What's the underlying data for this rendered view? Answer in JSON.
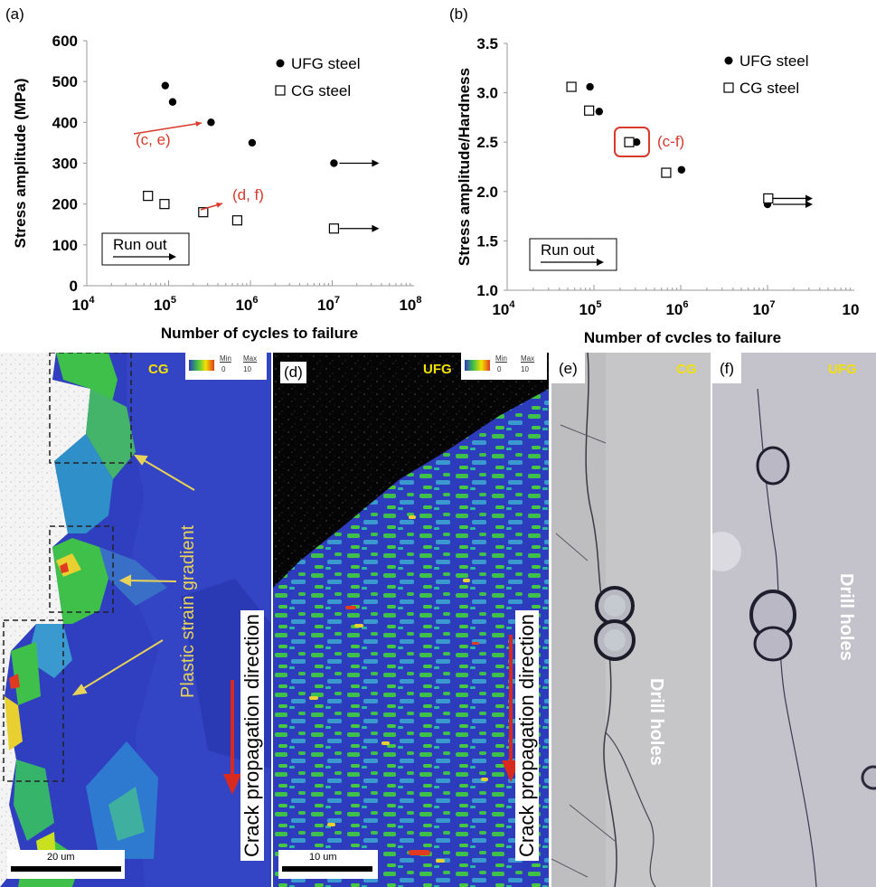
{
  "panels": {
    "a": "(a)",
    "b": "(b)",
    "c": "",
    "d": "(d)",
    "e": "(e)",
    "f": "(f)"
  },
  "chart_data": [
    {
      "type": "scatter",
      "xlabel": "Number of cycles to failure",
      "ylabel": "Stress amplitude (MPa)",
      "xscale": "log",
      "xlim": [
        10000,
        100000000
      ],
      "ylim": [
        0,
        600
      ],
      "xticks": [
        "10^4",
        "10^5",
        "10^6",
        "10^7",
        "10^8"
      ],
      "yticks": [
        "0",
        "100",
        "200",
        "300",
        "400",
        "500",
        "600"
      ],
      "legend": [
        "UFG steel",
        "CG steel"
      ],
      "legend_position": "top-right",
      "series": [
        {
          "name": "UFG steel",
          "marker": "filled-circle",
          "points": [
            [
              91000,
              490
            ],
            [
              112000,
              450
            ],
            [
              330000,
              400
            ],
            [
              1050000,
              350
            ],
            [
              10500000,
              300
            ]
          ]
        },
        {
          "name": "CG steel",
          "marker": "open-square",
          "points": [
            [
              56000,
              220
            ],
            [
              89000,
              200
            ],
            [
              265000,
              180
            ],
            [
              690000,
              160
            ],
            [
              10500000,
              140
            ]
          ]
        }
      ],
      "runouts": [
        [
          10500000,
          300
        ],
        [
          10500000,
          140
        ]
      ],
      "runout_label": "Run out",
      "annotations": [
        {
          "text": "(c, e)",
          "color": "#d93a2b",
          "points_to": [
            330000,
            400
          ]
        },
        {
          "text": "(d, f)",
          "color": "#d93a2b",
          "points_to": [
            265000,
            180
          ]
        }
      ]
    },
    {
      "type": "scatter",
      "xlabel": "Number of cvcles to failure",
      "ylabel": "Stress amplitude/Hardness",
      "xscale": "log",
      "xlim": [
        10000,
        100000000
      ],
      "ylim": [
        1.0,
        3.5
      ],
      "xticks": [
        "10^4",
        "10^5",
        "10^6",
        "10^7",
        "10"
      ],
      "yticks": [
        "1.0",
        "1.5",
        "2.0",
        "2.5",
        "3.0",
        "3.5"
      ],
      "legend": [
        "UFG steel",
        "CG steel"
      ],
      "legend_position": "top-right",
      "series": [
        {
          "name": "UFG steel",
          "marker": "filled-circle",
          "points": [
            [
              90000,
              3.06
            ],
            [
              115000,
              2.81
            ],
            [
              310000,
              2.5
            ],
            [
              1020000,
              2.22
            ],
            [
              10000000,
              1.87
            ]
          ]
        },
        {
          "name": "CG steel",
          "marker": "open-square",
          "points": [
            [
              55000,
              3.06
            ],
            [
              88000,
              2.82
            ],
            [
              255000,
              2.5
            ],
            [
              680000,
              2.19
            ],
            [
              10200000,
              1.93
            ]
          ]
        }
      ],
      "runouts": [
        [
          10000000,
          1.93
        ],
        [
          10000000,
          1.87
        ]
      ],
      "runout_label": "Run out",
      "annotations": [
        {
          "text": "(c-f)",
          "color": "#d93a2b",
          "points_to": [
            280000,
            2.5
          ],
          "boxed": true
        }
      ]
    }
  ],
  "image_c": {
    "tag": "CG",
    "scale_min_label": "Min",
    "scale_min_value": "0",
    "scale_max_label": "Max",
    "scale_max_value": "10",
    "annotation": "Plastic strain gradient",
    "direction": "Crack propagation direction",
    "scalebar": "20 um"
  },
  "image_d": {
    "tag": "UFG",
    "scale_min_label": "Min",
    "scale_min_value": "0",
    "scale_max_label": "Max",
    "scale_max_value": "10",
    "direction": "Crack propagation direction",
    "scalebar": "10 um"
  },
  "image_e": {
    "tag": "CG",
    "label": "Drill holes"
  },
  "image_f": {
    "tag": "UFG",
    "label": "Drill holes"
  },
  "colors": {
    "annotation_red": "#d93a2b",
    "tag_yellow": "#f2e100",
    "ebsd_blue": "#2b3bbd",
    "ebsd_green": "#3fc04a",
    "arrow_yellow": "#e8d25a",
    "arrow_red": "#d82a1f"
  }
}
